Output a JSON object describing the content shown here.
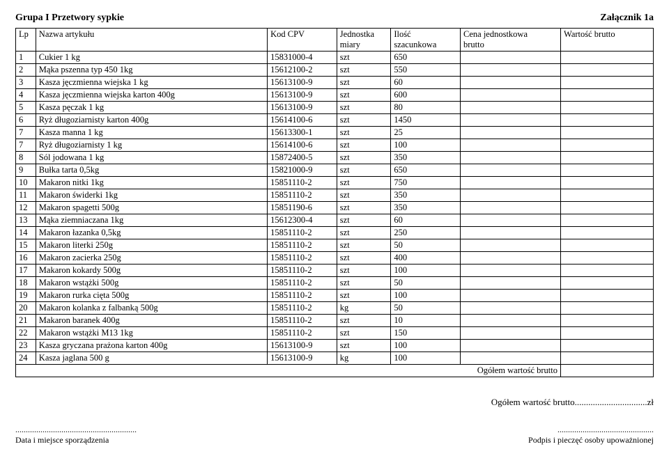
{
  "page": {
    "group_title": "Grupa I  Przetwory  sypkie",
    "attachment": "Załącznik 1a",
    "footer_total_label": "Ogółem wartość brutto",
    "footer_total_suffix": "zł",
    "dots_long": "................................",
    "sig_left_dots": "..........................................................",
    "sig_left_label": "Data i miejsce sporządzenia",
    "sig_right_dots": "..............................................",
    "sig_right_label": "Podpis i pieczęć osoby upoważnionej"
  },
  "table": {
    "headers": {
      "lp": "Lp",
      "name": "Nazwa artykułu",
      "cpv": "Kod CPV",
      "unit_l1": "Jednostka",
      "unit_l2": "miary",
      "qty_l1": "Ilość",
      "qty_l2": "szacunkowa",
      "price_l1": "Cena jednostkowa",
      "price_l2": "brutto",
      "val": "Wartość brutto"
    },
    "total_label": "Ogółem wartość brutto",
    "rows": [
      {
        "lp": "1",
        "name": "Cukier   1 kg",
        "cpv": "15831000-4",
        "unit": "szt",
        "qty": "650"
      },
      {
        "lp": "2",
        "name": "Mąka pszenna typ 450  1kg",
        "cpv": "15612100-2",
        "unit": "szt",
        "qty": "550"
      },
      {
        "lp": "3",
        "name": "Kasza jęczmienna wiejska  1 kg",
        "cpv": "15613100-9",
        "unit": "szt",
        "qty": "60"
      },
      {
        "lp": "4",
        "name": "Kasza jęczmienna wiejska karton   400g",
        "cpv": "15613100-9",
        "unit": "szt",
        "qty": "600"
      },
      {
        "lp": "5",
        "name": "Kasza pęczak  1 kg",
        "cpv": "15613100-9",
        "unit": "szt",
        "qty": "80"
      },
      {
        "lp": "6",
        "name": "Ryż długoziarnisty karton   400g",
        "cpv": "15614100-6",
        "unit": "szt",
        "qty": "1450"
      },
      {
        "lp": "7",
        "name": "Kasza manna   1 kg",
        "cpv": "15613300-1",
        "unit": "szt",
        "qty": "25"
      },
      {
        "lp": "7",
        "name": "Ryż  długoziarnisty     1 kg",
        "cpv": "15614100-6",
        "unit": "szt",
        "qty": "100"
      },
      {
        "lp": "8",
        "name": "Sól jodowana    1 kg",
        "cpv": "15872400-5",
        "unit": "szt",
        "qty": "350"
      },
      {
        "lp": "9",
        "name": "Bułka tarta      0,5kg",
        "cpv": "15821000-9",
        "unit": "szt",
        "qty": "650"
      },
      {
        "lp": "10",
        "name": "Makaron nitki      1kg",
        "cpv": "15851110-2",
        "unit": "szt",
        "qty": "750"
      },
      {
        "lp": "11",
        "name": "Makaron świderki     1kg",
        "cpv": "15851110-2",
        "unit": "szt",
        "qty": "350"
      },
      {
        "lp": "12",
        "name": "Makaron spagetti      500g",
        "cpv": "15851190-6",
        "unit": "szt",
        "qty": "350"
      },
      {
        "lp": "13",
        "name": "Mąka ziemniaczana    1kg",
        "cpv": "15612300-4",
        "unit": "szt",
        "qty": "60"
      },
      {
        "lp": "14",
        "name": "Makaron łazanka      0,5kg",
        "cpv": "15851110-2",
        "unit": "szt",
        "qty": "250"
      },
      {
        "lp": "15",
        "name": "Makaron  literki   250g",
        "cpv": "15851110-2",
        "unit": "szt",
        "qty": "50"
      },
      {
        "lp": "16",
        "name": "Makaron  zacierka     250g",
        "cpv": "15851110-2",
        "unit": "szt",
        "qty": "400"
      },
      {
        "lp": "17",
        "name": "Makaron  kokardy     500g",
        "cpv": "15851110-2",
        "unit": "szt",
        "qty": "100"
      },
      {
        "lp": "18",
        "name": "Makaron  wstążki     500g",
        "cpv": "15851110-2",
        "unit": "szt",
        "qty": "50"
      },
      {
        "lp": "19",
        "name": "Makaron  rurka  cięta      500g",
        "cpv": "15851110-2",
        "unit": "szt",
        "qty": "100"
      },
      {
        "lp": "20",
        "name": "Makaron  kolanka z falbanką     500g",
        "cpv": "15851110-2",
        "unit": "kg",
        "qty": "50"
      },
      {
        "lp": "21",
        "name": "Makaron  baranek       400g",
        "cpv": "15851110-2",
        "unit": "szt",
        "qty": "10"
      },
      {
        "lp": "22",
        "name": "Makaron wstążki M13   1kg",
        "cpv": "15851110-2",
        "unit": "szt",
        "qty": "150"
      },
      {
        "lp": "23",
        "name": "Kasza gryczana prażona karton    400g",
        "cpv": "15613100-9",
        "unit": "szt",
        "qty": "100"
      },
      {
        "lp": "24",
        "name": "Kasza jaglana 500 g",
        "cpv": "15613100-9",
        "unit": "kg",
        "qty": "100"
      }
    ]
  }
}
